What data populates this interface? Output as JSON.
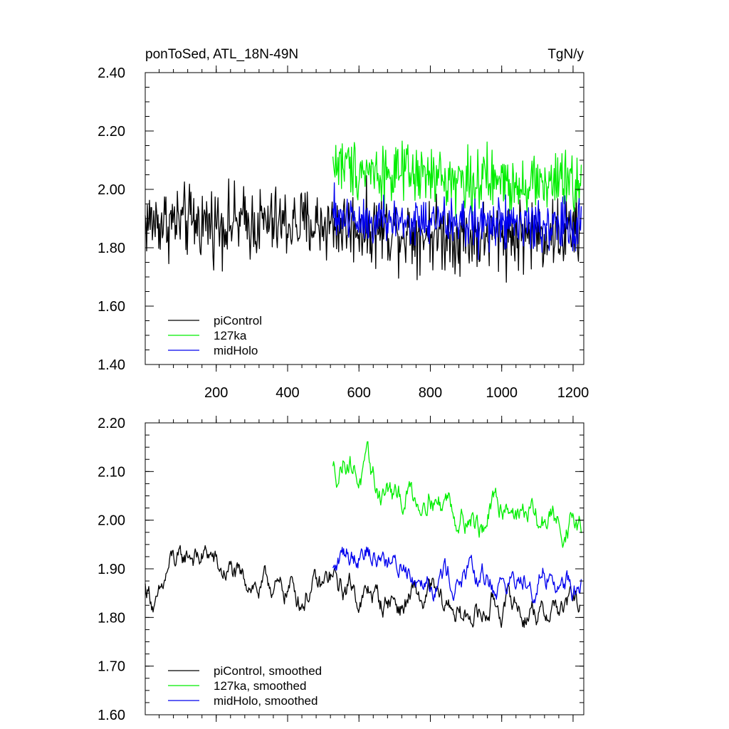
{
  "chart_data": [
    {
      "type": "line",
      "title": "ponToSed, ATL_18N-49N",
      "units": "TgN/y",
      "xlim": [
        1,
        1230
      ],
      "ylim": [
        1.4,
        2.4
      ],
      "xticks": [
        200,
        400,
        600,
        800,
        1000,
        1200
      ],
      "xtick_labels": [
        "200",
        "400",
        "600",
        "800",
        "1000",
        "1200"
      ],
      "yticks": [
        1.4,
        1.6,
        1.8,
        2.0,
        2.2,
        2.4
      ],
      "ytick_labels": [
        "1.40",
        "1.60",
        "1.80",
        "2.00",
        "2.20",
        "2.40"
      ],
      "legend_position": "bottom-left",
      "series": [
        {
          "name": "piControl",
          "color": "#000000",
          "x_start": 1,
          "x_end": 1220,
          "mean": 1.88,
          "noise_amp": 0.115,
          "trend": [
            [
              1,
              1.89
            ],
            [
              500,
              1.88
            ],
            [
              900,
              1.84
            ],
            [
              1220,
              1.85
            ]
          ]
        },
        {
          "name": "127ka",
          "color": "#00ee00",
          "x_start": 527,
          "x_end": 1224,
          "mean": 2.06,
          "noise_amp": 0.095,
          "trend": [
            [
              527,
              2.09
            ],
            [
              700,
              2.05
            ],
            [
              900,
              2.03
            ],
            [
              1224,
              2.02
            ]
          ]
        },
        {
          "name": "midHolo",
          "color": "#0000ee",
          "x_start": 527,
          "x_end": 1224,
          "mean": 1.89,
          "noise_amp": 0.085,
          "trend": [
            [
              527,
              1.91
            ],
            [
              700,
              1.89
            ],
            [
              1000,
              1.88
            ],
            [
              1224,
              1.87
            ]
          ]
        }
      ]
    },
    {
      "type": "line",
      "xlim": [
        1,
        1230
      ],
      "ylim": [
        1.6,
        2.2
      ],
      "xticks": [
        200,
        400,
        600,
        800,
        1000,
        1200
      ],
      "yticks": [
        1.6,
        1.7,
        1.8,
        1.9,
        2.0,
        2.1,
        2.2
      ],
      "ytick_labels": [
        "1.60",
        "1.70",
        "1.80",
        "1.90",
        "2.00",
        "2.10",
        "2.20"
      ],
      "legend_position": "bottom-left",
      "series": [
        {
          "name": "piControl, smoothed",
          "color": "#000000",
          "x_start": 1,
          "x_end": 1220,
          "noise_amp": 0.028,
          "trend": [
            [
              1,
              1.86
            ],
            [
              30,
              1.82
            ],
            [
              80,
              1.91
            ],
            [
              160,
              1.93
            ],
            [
              250,
              1.88
            ],
            [
              350,
              1.86
            ],
            [
              450,
              1.85
            ],
            [
              520,
              1.87
            ],
            [
              600,
              1.85
            ],
            [
              700,
              1.83
            ],
            [
              800,
              1.84
            ],
            [
              900,
              1.8
            ],
            [
              1000,
              1.83
            ],
            [
              1100,
              1.81
            ],
            [
              1220,
              1.83
            ]
          ]
        },
        {
          "name": "127ka, smoothed",
          "color": "#00ee00",
          "x_start": 527,
          "x_end": 1224,
          "noise_amp": 0.03,
          "trend": [
            [
              527,
              2.1
            ],
            [
              560,
              2.13
            ],
            [
              620,
              2.09
            ],
            [
              700,
              2.04
            ],
            [
              800,
              2.06
            ],
            [
              900,
              2.01
            ],
            [
              950,
              1.99
            ],
            [
              1000,
              2.04
            ],
            [
              1100,
              2.0
            ],
            [
              1224,
              1.99
            ]
          ]
        },
        {
          "name": "midHolo, smoothed",
          "color": "#0000ee",
          "x_start": 527,
          "x_end": 1224,
          "noise_amp": 0.028,
          "trend": [
            [
              527,
              1.9
            ],
            [
              600,
              1.95
            ],
            [
              700,
              1.91
            ],
            [
              800,
              1.89
            ],
            [
              900,
              1.88
            ],
            [
              1000,
              1.87
            ],
            [
              1100,
              1.89
            ],
            [
              1224,
              1.86
            ]
          ]
        }
      ]
    }
  ]
}
